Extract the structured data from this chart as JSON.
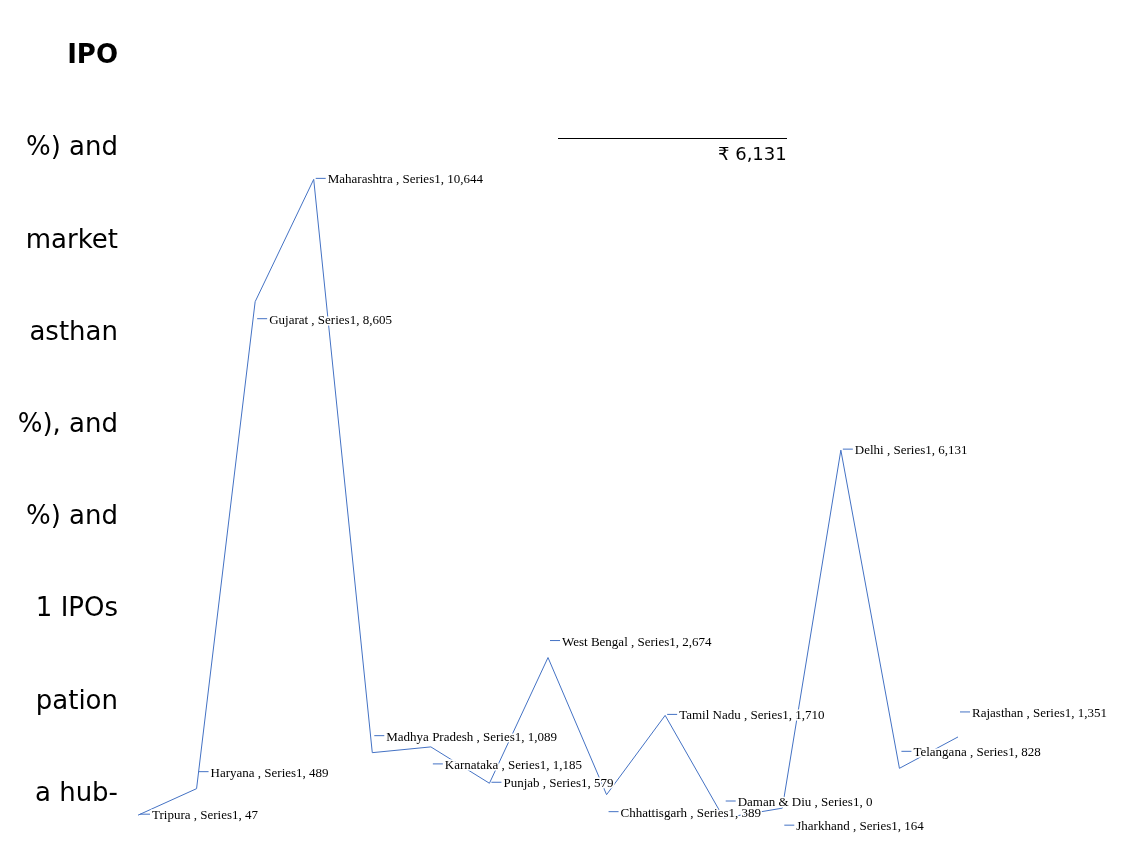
{
  "chart_data": {
    "type": "line",
    "annotations": [
      "IPO",
      "%) and",
      "market",
      "asthan",
      "%), and",
      "%) and",
      "1 IPOs",
      "pation",
      "a hub-",
      "₹ 6,131"
    ],
    "categories": [
      null,
      null,
      null,
      null,
      null,
      null,
      null,
      null,
      null,
      null,
      null,
      null,
      null,
      null,
      null
    ],
    "series": [
      {
        "color": "#4472c4",
        "values": [
          47,
          489,
          8605,
          10644,
          1089,
          1185,
          579,
          2674,
          389,
          1710,
          0,
          164,
          6131,
          828,
          1351
        ],
        "value_labels": [
          "Tripura , Series1, 47",
          "Haryana , Series1, 489",
          "Gujarat , Series1, 8,605",
          "Maharashtra , Series1, 10,644",
          "Madhya Pradesh , Series1, 1,089",
          "Karnataka , Series1, 1,185",
          "Punjab , Series1, 579",
          "West Bengal , Series1, 2,674",
          "Chhattisgarh , Series1, 389",
          "Tamil Nadu , Series1, 1,710",
          "Daman & Diu , Series1, 0",
          "Jharkhand , Series1, 164",
          "Delhi , Series1, 6,131",
          "Telangana , Series1, 828",
          "Rajasthan , Series1, 1,351"
        ]
      }
    ],
    "marker": "none",
    "grid": false,
    "legend": false
  }
}
